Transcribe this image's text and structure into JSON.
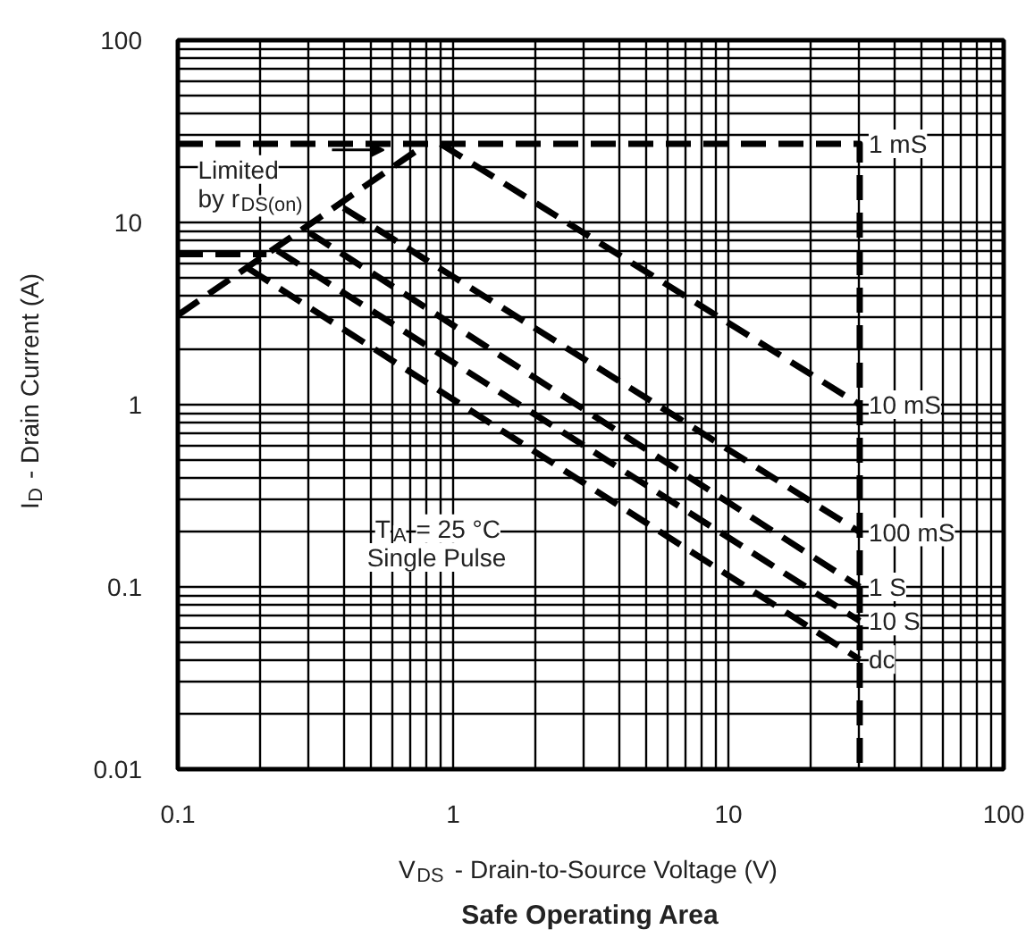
{
  "chart_data": {
    "type": "line",
    "title": "Safe Operating Area",
    "xlabel": "V$_{DS}$ -  Drain-to-Source Voltage (V)",
    "ylabel": "I$_{D}$ -  Drain Current (A)",
    "log": "xy",
    "xlim": [
      0.1,
      100
    ],
    "ylim": [
      0.01,
      100
    ],
    "xticks": [
      0.1,
      1,
      10,
      100
    ],
    "yticks": [
      0.01,
      0.1,
      1,
      10,
      100
    ],
    "grid": true,
    "line_style": "dashed",
    "series": [
      {
        "name": "1 mS",
        "color": "#000000",
        "x": [
          0.1,
          30,
          30
        ],
        "values": [
          27,
          27,
          0.01
        ]
      },
      {
        "color": "#000000",
        "x": [
          0.1,
          0.8
        ],
        "values": [
          3.1,
          27
        ]
      },
      {
        "color": "#000000",
        "x": [
          0.1,
          0.21
        ],
        "values": [
          6.7,
          6.7
        ]
      },
      {
        "name": "10 mS",
        "color": "#000000",
        "x": [
          0.9,
          30
        ],
        "values": [
          27,
          1.0
        ]
      },
      {
        "name": "100 mS",
        "color": "#000000",
        "x": [
          0.4,
          30
        ],
        "values": [
          12,
          0.2
        ]
      },
      {
        "name": "1 S",
        "color": "#000000",
        "x": [
          0.3,
          30
        ],
        "values": [
          8.8,
          0.1
        ]
      },
      {
        "name": "10 S",
        "color": "#000000",
        "x": [
          0.23,
          30
        ],
        "values": [
          7.0,
          0.065
        ]
      },
      {
        "name": "dc",
        "color": "#000000",
        "x": [
          0.18,
          30
        ],
        "values": [
          5.6,
          0.04
        ]
      }
    ],
    "annotations": [
      {
        "text": "Limited\nby r$_{DS(on)}$",
        "x": 0.56,
        "y": 25
      },
      "T$_{A}$ = 25 °C\nSingle Pulse"
    ]
  }
}
